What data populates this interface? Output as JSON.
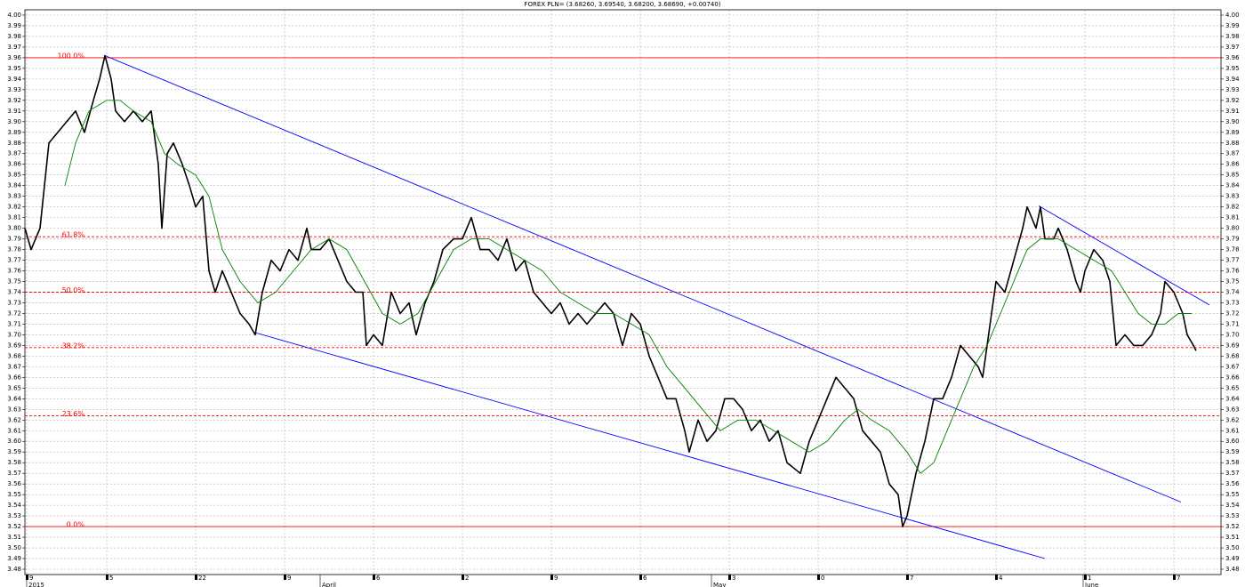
{
  "chart_data": {
    "type": "line",
    "title": "FOREX PLN= (3.68260, 3.69540, 3.68200, 3.68690, +0.00740)",
    "xlim": [
      28,
      1373
    ],
    "ylim": [
      3.475,
      4.005
    ],
    "grid": true,
    "xticks": [
      {
        "value": 30,
        "label": "9"
      },
      {
        "value": 120,
        "label": "5"
      },
      {
        "value": 220,
        "label": "22"
      },
      {
        "value": 320,
        "label": "9"
      },
      {
        "value": 420,
        "label": "6"
      },
      {
        "value": 520,
        "label": "2"
      },
      {
        "value": 620,
        "label": "9"
      },
      {
        "value": 720,
        "label": "6"
      },
      {
        "value": 820,
        "label": "3"
      },
      {
        "value": 920,
        "label": "0"
      },
      {
        "value": 1020,
        "label": "7"
      },
      {
        "value": 1120,
        "label": "4"
      },
      {
        "value": 1220,
        "label": "1"
      },
      {
        "value": 1320,
        "label": "7"
      }
    ],
    "x_period_labels": [
      {
        "value": 30,
        "label": "2015"
      },
      {
        "value": 360,
        "label": "April"
      },
      {
        "value": 800,
        "label": "May"
      },
      {
        "value": 1218,
        "label": "June"
      }
    ],
    "yticks": [
      3.48,
      3.49,
      {
        "value": 3.5,
        "label": "3.50"
      },
      3.51,
      3.52,
      3.53,
      3.54,
      3.55,
      3.56,
      3.57,
      3.58,
      3.59,
      {
        "value": 3.6,
        "label": "3.60"
      },
      3.61,
      3.62,
      3.63,
      3.64,
      3.65,
      3.66,
      3.67,
      3.68,
      3.69,
      {
        "value": 3.7,
        "label": "3.70"
      },
      3.71,
      3.72,
      3.73,
      3.74,
      3.75,
      3.76,
      3.77,
      3.78,
      3.79,
      {
        "value": 3.8,
        "label": "3.80"
      },
      3.81,
      3.82,
      3.83,
      3.84,
      3.85,
      3.86,
      3.87,
      3.88,
      3.89,
      {
        "value": 3.9,
        "label": "3.90"
      },
      3.91,
      3.92,
      3.93,
      3.94,
      3.95,
      3.96,
      3.97,
      3.98,
      3.99,
      {
        "value": 4.0,
        "label": "4.00"
      }
    ],
    "fib_levels": [
      {
        "label": "100.0%",
        "value": 3.96,
        "style": "solid"
      },
      {
        "label": "61.8%",
        "value": 3.792,
        "style": "dashed"
      },
      {
        "label": "50.0%",
        "value": 3.74,
        "style": "dashed"
      },
      {
        "label": "38.2%",
        "value": 3.688,
        "style": "dashed"
      },
      {
        "label": "23.6%",
        "value": 3.624,
        "style": "dashed"
      },
      {
        "label": "0.0%",
        "value": 3.52,
        "style": "solid"
      }
    ],
    "fib_color": "#ff0000",
    "trend_lines": [
      {
        "x": [
          118,
          1328
        ],
        "values": [
          3.962,
          3.543
        ]
      },
      {
        "x": [
          287,
          1175
        ],
        "values": [
          3.702,
          3.49
        ]
      },
      {
        "x": [
          1168,
          1360
        ],
        "values": [
          3.821,
          3.728
        ]
      }
    ],
    "trend_color": "#0000ff",
    "series": [
      {
        "color": "#000000",
        "x": [
          28,
          35,
          45,
          55,
          65,
          75,
          85,
          95,
          105,
          112,
          118,
          125,
          130,
          140,
          150,
          160,
          170,
          178,
          182,
          188,
          195,
          205,
          213,
          220,
          228,
          235,
          242,
          250,
          260,
          270,
          280,
          287,
          295,
          305,
          315,
          325,
          335,
          345,
          350,
          360,
          370,
          380,
          390,
          400,
          408,
          412,
          420,
          430,
          440,
          450,
          460,
          468,
          478,
          488,
          498,
          510,
          520,
          530,
          540,
          550,
          560,
          570,
          580,
          590,
          600,
          610,
          620,
          630,
          640,
          650,
          660,
          670,
          680,
          690,
          700,
          710,
          720,
          730,
          740,
          750,
          760,
          770,
          775,
          785,
          795,
          805,
          815,
          825,
          835,
          845,
          855,
          865,
          875,
          885,
          900,
          910,
          920,
          930,
          940,
          950,
          960,
          970,
          980,
          990,
          1000,
          1010,
          1015,
          1020,
          1030,
          1040,
          1050,
          1060,
          1070,
          1080,
          1090,
          1100,
          1105,
          1110,
          1120,
          1130,
          1140,
          1150,
          1155,
          1160,
          1165,
          1170,
          1175,
          1185,
          1190,
          1200,
          1210,
          1215,
          1220,
          1230,
          1240,
          1248,
          1255,
          1265,
          1275,
          1285,
          1295,
          1305,
          1310,
          1320,
          1330,
          1335,
          1342,
          1345
        ],
        "values": [
          3.8,
          3.78,
          3.8,
          3.88,
          3.89,
          3.9,
          3.91,
          3.89,
          3.92,
          3.94,
          3.962,
          3.94,
          3.91,
          3.9,
          3.91,
          3.9,
          3.91,
          3.86,
          3.8,
          3.87,
          3.88,
          3.86,
          3.84,
          3.82,
          3.83,
          3.76,
          3.74,
          3.76,
          3.74,
          3.72,
          3.71,
          3.7,
          3.74,
          3.77,
          3.76,
          3.78,
          3.77,
          3.8,
          3.78,
          3.78,
          3.79,
          3.77,
          3.75,
          3.74,
          3.74,
          3.69,
          3.7,
          3.69,
          3.74,
          3.72,
          3.73,
          3.7,
          3.73,
          3.75,
          3.78,
          3.79,
          3.79,
          3.81,
          3.78,
          3.78,
          3.77,
          3.79,
          3.76,
          3.77,
          3.74,
          3.73,
          3.72,
          3.73,
          3.71,
          3.72,
          3.71,
          3.72,
          3.73,
          3.72,
          3.69,
          3.72,
          3.71,
          3.68,
          3.66,
          3.64,
          3.64,
          3.61,
          3.59,
          3.62,
          3.6,
          3.61,
          3.64,
          3.64,
          3.63,
          3.61,
          3.62,
          3.6,
          3.61,
          3.58,
          3.57,
          3.6,
          3.62,
          3.64,
          3.66,
          3.65,
          3.64,
          3.61,
          3.6,
          3.59,
          3.56,
          3.55,
          3.52,
          3.53,
          3.57,
          3.6,
          3.64,
          3.64,
          3.66,
          3.69,
          3.68,
          3.67,
          3.66,
          3.69,
          3.75,
          3.74,
          3.77,
          3.8,
          3.82,
          3.81,
          3.8,
          3.82,
          3.79,
          3.79,
          3.8,
          3.78,
          3.75,
          3.74,
          3.76,
          3.78,
          3.77,
          3.75,
          3.69,
          3.7,
          3.69,
          3.69,
          3.7,
          3.72,
          3.75,
          3.74,
          3.72,
          3.7,
          3.69,
          3.685
        ]
      },
      {
        "color": "#008000",
        "x": [
          73,
          85,
          100,
          120,
          135,
          150,
          170,
          185,
          200,
          220,
          235,
          250,
          270,
          290,
          310,
          330,
          350,
          370,
          390,
          410,
          430,
          450,
          470,
          490,
          510,
          530,
          550,
          570,
          590,
          610,
          630,
          650,
          670,
          690,
          710,
          730,
          750,
          770,
          790,
          810,
          830,
          850,
          870,
          890,
          910,
          930,
          950,
          965,
          980,
          1000,
          1020,
          1035,
          1050,
          1065,
          1080,
          1095,
          1110,
          1125,
          1140,
          1155,
          1170,
          1190,
          1210,
          1230,
          1250,
          1265,
          1280,
          1295,
          1310,
          1325,
          1340
        ],
        "values": [
          3.84,
          3.88,
          3.91,
          3.92,
          3.92,
          3.91,
          3.9,
          3.87,
          3.86,
          3.85,
          3.83,
          3.78,
          3.75,
          3.73,
          3.74,
          3.76,
          3.78,
          3.79,
          3.78,
          3.75,
          3.72,
          3.71,
          3.72,
          3.75,
          3.78,
          3.79,
          3.79,
          3.78,
          3.77,
          3.76,
          3.74,
          3.73,
          3.72,
          3.72,
          3.71,
          3.7,
          3.67,
          3.65,
          3.63,
          3.61,
          3.62,
          3.62,
          3.61,
          3.6,
          3.59,
          3.6,
          3.62,
          3.63,
          3.62,
          3.61,
          3.59,
          3.57,
          3.58,
          3.61,
          3.64,
          3.67,
          3.69,
          3.72,
          3.75,
          3.78,
          3.79,
          3.79,
          3.78,
          3.77,
          3.76,
          3.74,
          3.72,
          3.71,
          3.71,
          3.72,
          3.72
        ]
      }
    ]
  }
}
